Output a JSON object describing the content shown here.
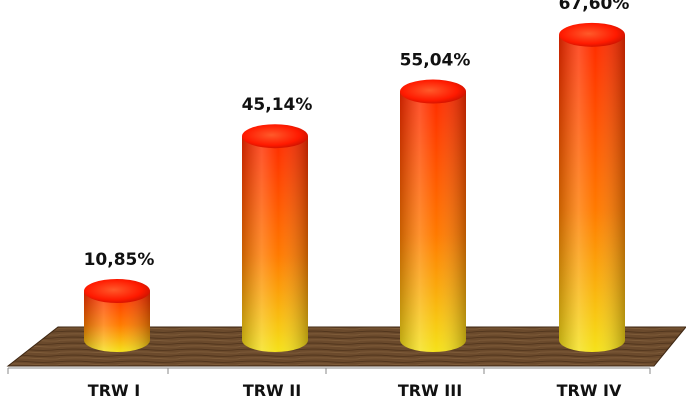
{
  "chart_data": {
    "type": "bar",
    "style": "3d-cylinder",
    "categories": [
      "TRW I",
      "TRW II",
      "TRW III",
      "TRW IV"
    ],
    "values": [
      10.85,
      45.14,
      55.04,
      67.6
    ],
    "value_labels": [
      "10,85%",
      "45,14%",
      "55,04%",
      "67,60%"
    ],
    "title": "",
    "xlabel": "",
    "ylabel": "",
    "ylim": [
      0,
      70
    ],
    "grid": false,
    "legend": "none",
    "colors": {
      "bar_top": "#ff2a00",
      "bar_mid": "#ff7a00",
      "bar_bottom": "#f5e21a",
      "floor": "#6b4a2c",
      "floor_edge": "#3d2612"
    }
  }
}
